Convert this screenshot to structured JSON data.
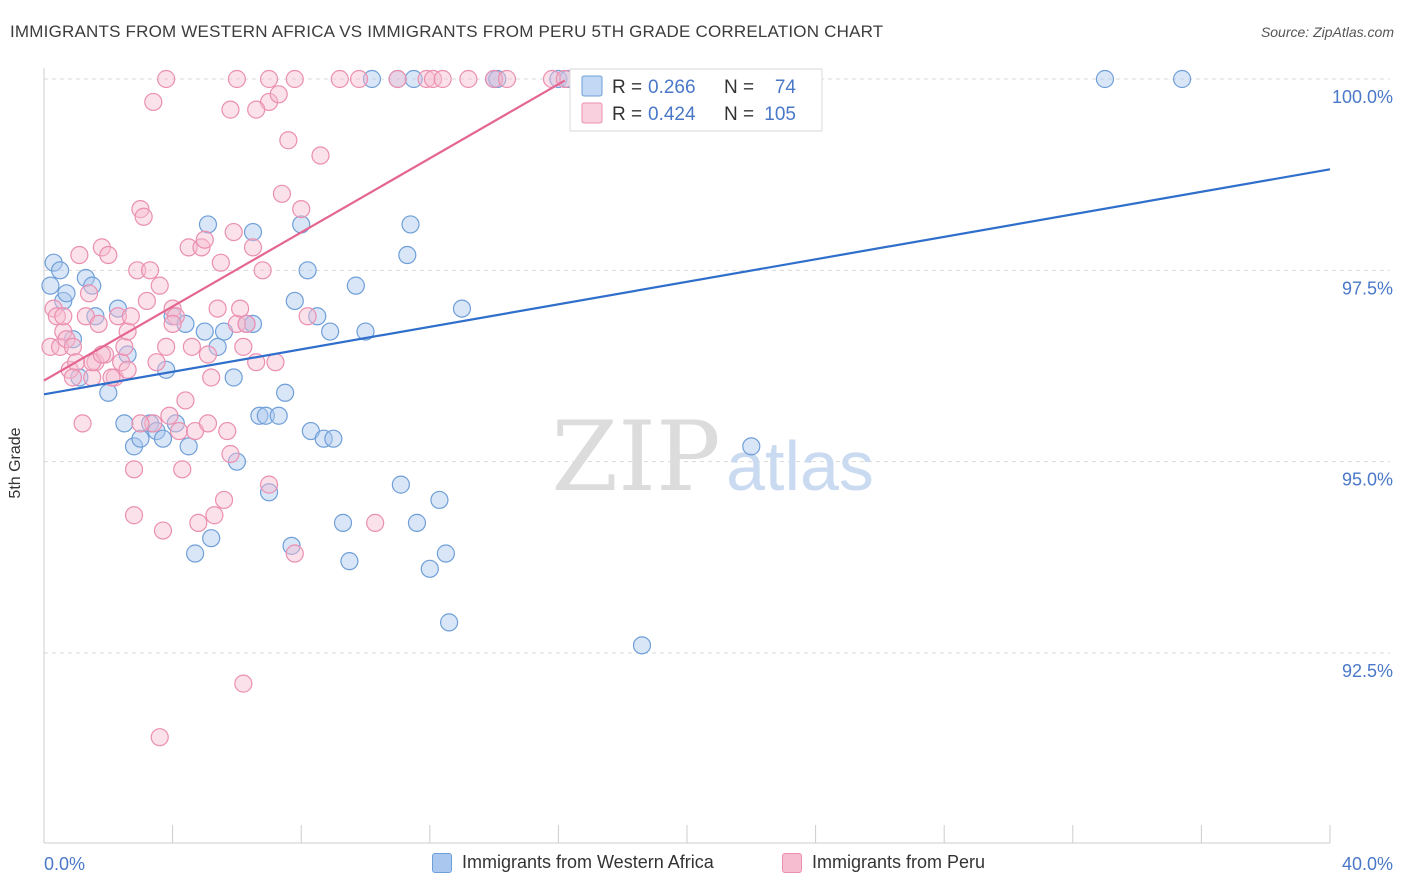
{
  "title": "IMMIGRANTS FROM WESTERN AFRICA VS IMMIGRANTS FROM PERU 5TH GRADE CORRELATION CHART",
  "source": "Source: ZipAtlas.com",
  "watermark": {
    "zip": "ZIP",
    "atlas": "atlas"
  },
  "colors": {
    "blue_fill": "#aac8ef",
    "blue_stroke": "#6f9fd8",
    "blue_line": "#2f6fcb",
    "pink_fill": "#f6bcd0",
    "pink_stroke": "#eb8fb0",
    "pink_line": "#e4658f",
    "axis_text": "#4a78c8",
    "grid": "#d9d9d9"
  },
  "stats_legend": [
    {
      "r_label": "R = ",
      "r_value": "0.266",
      "n_label": "N = ",
      "n_value": "74"
    },
    {
      "r_label": "R = ",
      "r_value": "0.424",
      "n_label": "N = ",
      "n_value": "105"
    }
  ],
  "chart_data": {
    "type": "scatter",
    "title": "IMMIGRANTS FROM WESTERN AFRICA VS IMMIGRANTS FROM PERU 5TH GRADE CORRELATION CHART",
    "xlabel": "",
    "ylabel": "5th Grade",
    "xlim": [
      0,
      40
    ],
    "ylim": [
      90.0,
      100.2
    ],
    "x_tick_labels": [
      {
        "value": 0,
        "label": "0.0%"
      },
      {
        "value": 40,
        "label": "40.0%"
      }
    ],
    "y_ticks": [
      {
        "value": 100.0,
        "label": "100.0%"
      },
      {
        "value": 97.5,
        "label": "97.5%"
      },
      {
        "value": 95.0,
        "label": "95.0%"
      },
      {
        "value": 92.5,
        "label": "92.5%"
      }
    ],
    "grid": true,
    "legend_position": "bottom",
    "series": [
      {
        "name": "Immigrants from Western Africa",
        "color": "blue",
        "trend": {
          "x": [
            0,
            40
          ],
          "y": [
            95.88,
            98.82
          ]
        },
        "points": [
          [
            0.3,
            97.6
          ],
          [
            0.5,
            97.5
          ],
          [
            0.6,
            97.1
          ],
          [
            0.7,
            97.2
          ],
          [
            0.9,
            96.6
          ],
          [
            1.1,
            96.1
          ],
          [
            1.3,
            97.4
          ],
          [
            1.5,
            97.3
          ],
          [
            1.6,
            96.9
          ],
          [
            2.0,
            95.9
          ],
          [
            2.3,
            97.0
          ],
          [
            2.6,
            96.4
          ],
          [
            2.5,
            95.5
          ],
          [
            2.8,
            95.2
          ],
          [
            3.0,
            95.3
          ],
          [
            3.3,
            95.5
          ],
          [
            3.5,
            95.4
          ],
          [
            3.8,
            96.2
          ],
          [
            3.7,
            95.3
          ],
          [
            4.0,
            96.9
          ],
          [
            4.1,
            95.5
          ],
          [
            4.4,
            96.8
          ],
          [
            4.5,
            95.2
          ],
          [
            4.7,
            93.8
          ],
          [
            5.0,
            96.7
          ],
          [
            5.1,
            98.1
          ],
          [
            5.2,
            94.0
          ],
          [
            5.4,
            96.5
          ],
          [
            5.6,
            96.7
          ],
          [
            5.9,
            96.1
          ],
          [
            6.0,
            95.0
          ],
          [
            6.3,
            96.8
          ],
          [
            6.5,
            98.0
          ],
          [
            6.7,
            95.6
          ],
          [
            6.9,
            95.6
          ],
          [
            7.0,
            94.6
          ],
          [
            7.3,
            95.6
          ],
          [
            7.5,
            95.9
          ],
          [
            7.7,
            93.9
          ],
          [
            7.8,
            97.1
          ],
          [
            8.0,
            98.1
          ],
          [
            8.2,
            97.5
          ],
          [
            8.3,
            95.4
          ],
          [
            8.5,
            96.9
          ],
          [
            8.7,
            95.3
          ],
          [
            8.9,
            96.7
          ],
          [
            9.0,
            95.3
          ],
          [
            9.3,
            94.2
          ],
          [
            9.5,
            93.7
          ],
          [
            9.7,
            97.3
          ],
          [
            10.0,
            96.7
          ],
          [
            10.2,
            100.0
          ],
          [
            11.0,
            100.0
          ],
          [
            11.1,
            94.7
          ],
          [
            11.3,
            97.7
          ],
          [
            11.4,
            98.1
          ],
          [
            11.5,
            100.0
          ],
          [
            11.6,
            94.2
          ],
          [
            12.0,
            93.6
          ],
          [
            12.3,
            94.5
          ],
          [
            12.5,
            93.8
          ],
          [
            12.6,
            92.9
          ],
          [
            13.0,
            97.0
          ],
          [
            14.0,
            100.0
          ],
          [
            14.1,
            100.0
          ],
          [
            16.0,
            100.0
          ],
          [
            16.3,
            100.0
          ],
          [
            17.0,
            100.0
          ],
          [
            18.6,
            92.6
          ],
          [
            22.0,
            95.2
          ],
          [
            33.0,
            100.0
          ],
          [
            35.4,
            100.0
          ],
          [
            0.2,
            97.3
          ],
          [
            6.5,
            96.8
          ]
        ]
      },
      {
        "name": "Immigrants from Peru",
        "color": "pink",
        "trend": {
          "x": [
            0,
            16.2
          ],
          "y": [
            96.06,
            99.98
          ]
        },
        "points": [
          [
            0.2,
            96.5
          ],
          [
            0.3,
            97.0
          ],
          [
            0.4,
            96.9
          ],
          [
            0.5,
            96.5
          ],
          [
            0.6,
            96.7
          ],
          [
            0.7,
            96.6
          ],
          [
            0.8,
            96.2
          ],
          [
            0.9,
            96.5
          ],
          [
            1.0,
            96.3
          ],
          [
            1.1,
            97.7
          ],
          [
            1.2,
            95.5
          ],
          [
            1.3,
            96.9
          ],
          [
            1.4,
            97.2
          ],
          [
            1.5,
            96.1
          ],
          [
            1.6,
            96.3
          ],
          [
            1.7,
            96.8
          ],
          [
            1.8,
            97.8
          ],
          [
            1.9,
            96.4
          ],
          [
            2.0,
            97.7
          ],
          [
            2.2,
            96.1
          ],
          [
            2.3,
            96.9
          ],
          [
            2.4,
            96.3
          ],
          [
            2.5,
            96.5
          ],
          [
            2.6,
            96.7
          ],
          [
            2.7,
            96.9
          ],
          [
            2.8,
            94.9
          ],
          [
            2.9,
            97.5
          ],
          [
            3.0,
            98.3
          ],
          [
            3.1,
            98.2
          ],
          [
            3.2,
            97.1
          ],
          [
            3.3,
            97.5
          ],
          [
            3.4,
            95.5
          ],
          [
            3.5,
            96.3
          ],
          [
            3.6,
            97.3
          ],
          [
            3.7,
            94.1
          ],
          [
            3.8,
            96.5
          ],
          [
            3.9,
            95.6
          ],
          [
            4.0,
            97.0
          ],
          [
            4.1,
            96.9
          ],
          [
            4.2,
            95.4
          ],
          [
            4.3,
            94.9
          ],
          [
            4.4,
            95.8
          ],
          [
            4.5,
            97.8
          ],
          [
            4.6,
            96.5
          ],
          [
            4.7,
            95.4
          ],
          [
            4.8,
            94.2
          ],
          [
            4.9,
            97.8
          ],
          [
            5.0,
            97.9
          ],
          [
            5.1,
            95.5
          ],
          [
            5.2,
            96.1
          ],
          [
            5.3,
            94.3
          ],
          [
            5.4,
            97.0
          ],
          [
            5.5,
            97.6
          ],
          [
            5.6,
            94.5
          ],
          [
            5.7,
            95.4
          ],
          [
            5.8,
            95.1
          ],
          [
            5.9,
            98.0
          ],
          [
            6.0,
            96.8
          ],
          [
            6.1,
            97.0
          ],
          [
            6.3,
            96.8
          ],
          [
            6.5,
            97.8
          ],
          [
            6.6,
            96.3
          ],
          [
            6.8,
            97.5
          ],
          [
            7.0,
            94.7
          ],
          [
            7.2,
            96.3
          ],
          [
            7.4,
            98.5
          ],
          [
            7.6,
            99.2
          ],
          [
            7.8,
            93.8
          ],
          [
            8.0,
            98.3
          ],
          [
            8.2,
            96.9
          ],
          [
            8.6,
            99.0
          ],
          [
            9.2,
            100.0
          ],
          [
            9.8,
            100.0
          ],
          [
            10.3,
            94.2
          ],
          [
            11.0,
            100.0
          ],
          [
            11.9,
            100.0
          ],
          [
            12.1,
            100.0
          ],
          [
            12.4,
            100.0
          ],
          [
            13.2,
            100.0
          ],
          [
            14.0,
            100.0
          ],
          [
            14.4,
            100.0
          ],
          [
            15.8,
            100.0
          ],
          [
            16.2,
            100.0
          ],
          [
            7.0,
            99.7
          ],
          [
            7.3,
            99.8
          ],
          [
            6.6,
            99.6
          ],
          [
            5.8,
            99.6
          ],
          [
            3.4,
            99.7
          ],
          [
            3.8,
            100.0
          ],
          [
            7.0,
            100.0
          ],
          [
            7.8,
            100.0
          ],
          [
            6.0,
            100.0
          ],
          [
            0.9,
            96.1
          ],
          [
            1.5,
            96.3
          ],
          [
            2.1,
            96.1
          ],
          [
            3.0,
            95.5
          ],
          [
            4.0,
            96.8
          ],
          [
            5.1,
            96.4
          ],
          [
            6.2,
            96.5
          ],
          [
            3.6,
            91.4
          ],
          [
            6.2,
            92.1
          ],
          [
            2.8,
            94.3
          ],
          [
            1.8,
            96.4
          ],
          [
            0.6,
            96.9
          ],
          [
            2.6,
            96.2
          ]
        ]
      }
    ]
  },
  "legend_bottom": [
    {
      "label": "Immigrants from Western Africa"
    },
    {
      "label": "Immigrants from Peru"
    }
  ]
}
